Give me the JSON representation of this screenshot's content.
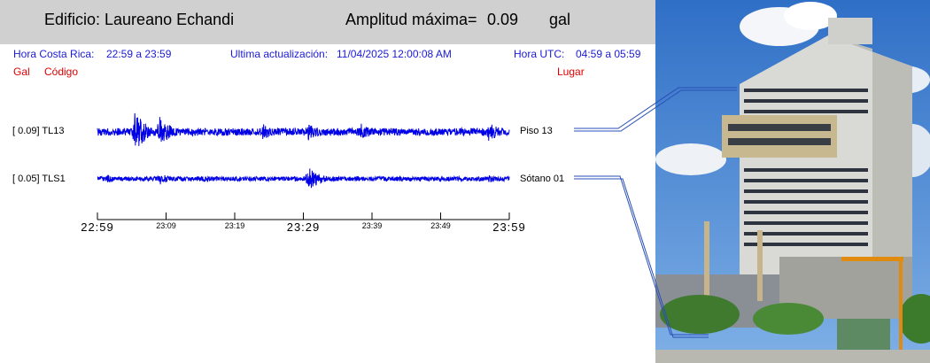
{
  "header": {
    "building_label": "Edificio: Laureano Echandi",
    "amplitude_label": "Amplitud máxima=",
    "amplitude_value": "0.09",
    "amplitude_unit": "gal"
  },
  "info": {
    "cr_time_label": "Hora Costa Rica:",
    "cr_time_value": "22:59 a 23:59",
    "update_label": "Ultima actualización:",
    "update_value": "11/04/2025 12:00:08 AM",
    "utc_label": "Hora UTC:",
    "utc_value": "04:59 a 05:59"
  },
  "columns": {
    "gal": "Gal",
    "code": "Código",
    "place": "Lugar"
  },
  "chart_data": {
    "type": "line",
    "x_ticks_major": [
      "22:59",
      "23:29",
      "23:59"
    ],
    "x_ticks_minor": [
      "23:09",
      "23:19",
      "23:39",
      "23:49"
    ],
    "series": [
      {
        "name": "TL13",
        "left_label": "[   0.09] TL13",
        "right_label": "Piso 13",
        "max_gal": 0.09,
        "events": [
          [
            0.04,
            0.08
          ],
          [
            0.09,
            1.0
          ],
          [
            0.15,
            0.75
          ],
          [
            0.4,
            0.42
          ],
          [
            0.51,
            0.45
          ],
          [
            0.64,
            0.4
          ],
          [
            0.95,
            0.48
          ]
        ]
      },
      {
        "name": "TLS1",
        "left_label": "[   0.05] TLS1",
        "right_label": "Sótano 01",
        "max_gal": 0.05,
        "events": [
          [
            0.02,
            0.42
          ],
          [
            0.15,
            0.5
          ],
          [
            0.26,
            0.3
          ],
          [
            0.51,
            1.0
          ],
          [
            0.83,
            0.3
          ],
          [
            0.95,
            0.32
          ]
        ]
      }
    ],
    "color": "#0000e6"
  },
  "photo": {
    "description_icon": "building-photo"
  }
}
